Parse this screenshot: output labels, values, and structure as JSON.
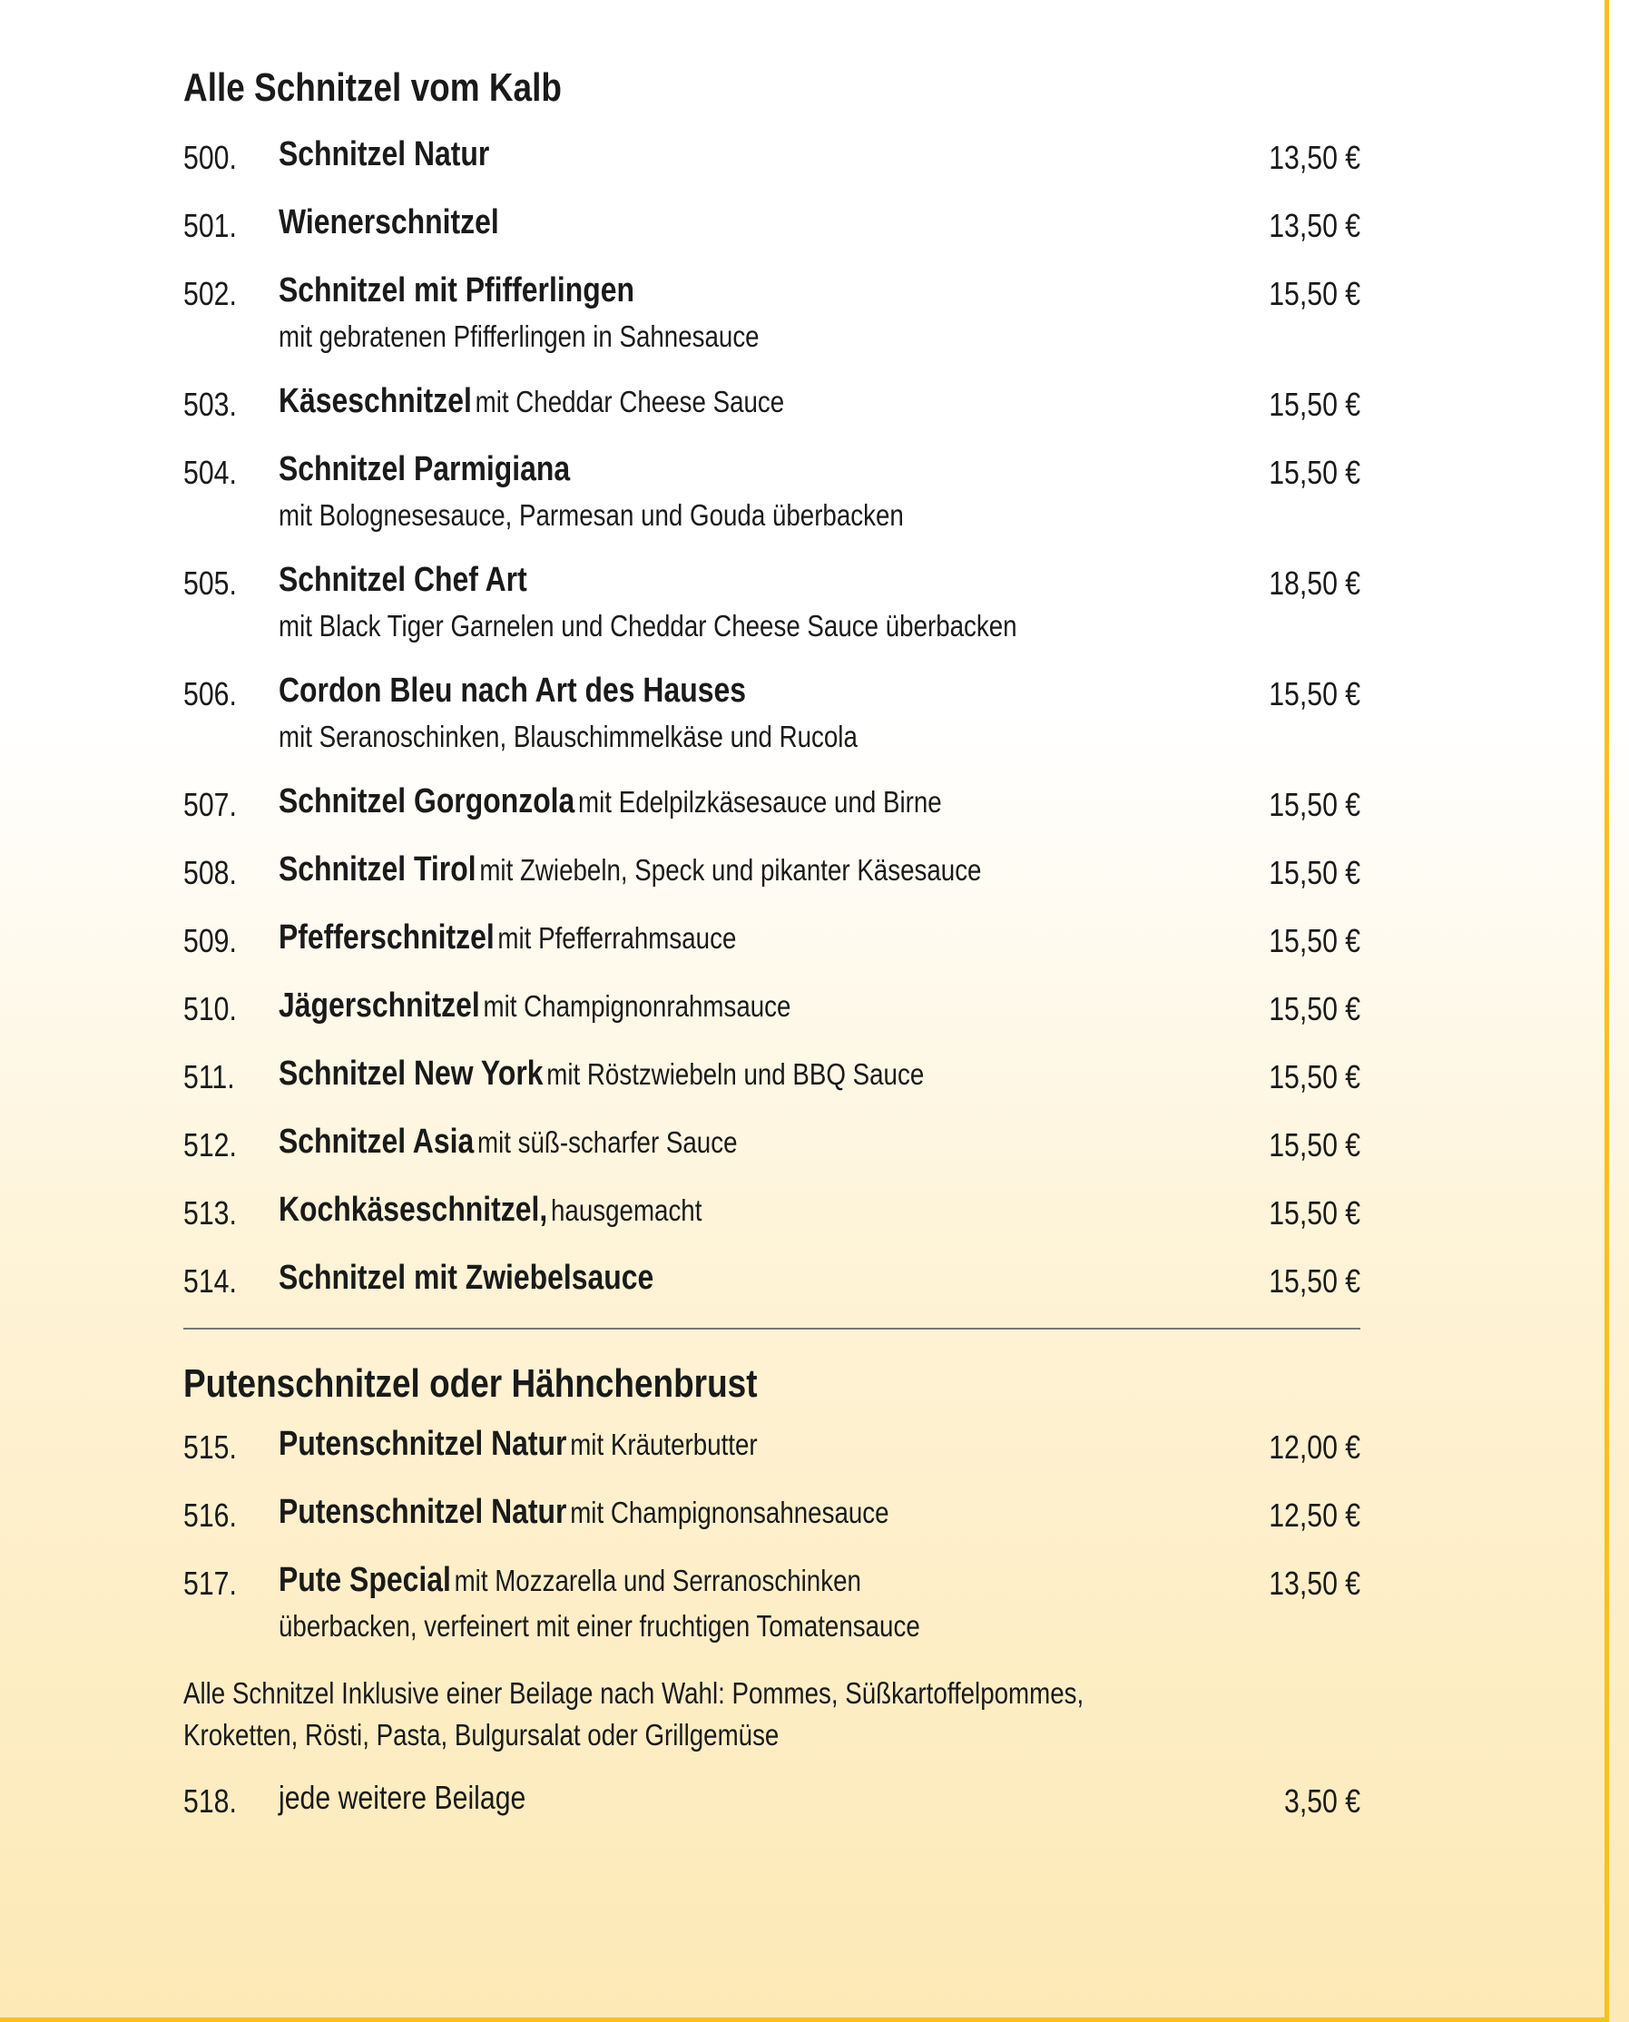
{
  "colors": {
    "frame": "#f6c21c",
    "background_bottom": "#fde9b6"
  },
  "sections": [
    {
      "title": "Alle Schnitzel vom Kalb",
      "items": [
        {
          "num": "500.",
          "name": "Schnitzel Natur",
          "desc": "",
          "sub": "",
          "price": "13,50 €"
        },
        {
          "num": "501.",
          "name": "Wienerschnitzel",
          "desc": "",
          "sub": "",
          "price": "13,50 €"
        },
        {
          "num": "502.",
          "name": "Schnitzel mit Pfifferlingen",
          "desc": "",
          "sub": "mit gebratenen Pfifferlingen in Sahnesauce",
          "price": "15,50 €"
        },
        {
          "num": "503.",
          "name": "Käseschnitzel",
          "desc": "mit Cheddar Cheese Sauce",
          "sub": "",
          "price": "15,50 €"
        },
        {
          "num": "504.",
          "name": "Schnitzel Parmigiana",
          "desc": "",
          "sub": "mit Bolognesesauce, Parmesan und Gouda überbacken",
          "price": "15,50 €"
        },
        {
          "num": "505.",
          "name": "Schnitzel Chef Art",
          "desc": "",
          "sub": "mit Black Tiger Garnelen und Cheddar Cheese Sauce überbacken",
          "price": "18,50 €"
        },
        {
          "num": "506.",
          "name": "Cordon Bleu nach Art des Hauses",
          "desc": "",
          "sub": "mit Seranoschinken, Blauschimmelkäse und Rucola",
          "price": "15,50 €"
        },
        {
          "num": "507.",
          "name": "Schnitzel Gorgonzola",
          "desc": "mit Edelpilzkäsesauce und Birne",
          "sub": "",
          "price": "15,50 €"
        },
        {
          "num": "508.",
          "name": "Schnitzel Tirol",
          "desc": "mit Zwiebeln, Speck und pikanter Käsesauce",
          "sub": "",
          "price": "15,50 €"
        },
        {
          "num": "509.",
          "name": "Pfefferschnitzel",
          "desc": "mit Pfefferrahmsauce",
          "sub": "",
          "price": "15,50 €"
        },
        {
          "num": "510.",
          "name": "Jägerschnitzel",
          "desc": "mit Champignonrahmsauce",
          "sub": "",
          "price": "15,50 €"
        },
        {
          "num": "511.",
          "name": "Schnitzel New York",
          "desc": "mit Röstzwiebeln und BBQ Sauce",
          "sub": "",
          "price": "15,50 €"
        },
        {
          "num": "512.",
          "name": "Schnitzel Asia",
          "desc": "mit süß-scharfer Sauce",
          "sub": "",
          "price": "15,50 €"
        },
        {
          "num": "513.",
          "name": "Kochkäseschnitzel,",
          "desc": "hausgemacht",
          "sub": "",
          "price": "15,50 €"
        },
        {
          "num": "514.",
          "name": "Schnitzel mit Zwiebelsauce",
          "desc": "",
          "sub": "",
          "price": "15,50 €"
        }
      ]
    },
    {
      "title": "Putenschnitzel oder Hähnchenbrust",
      "items": [
        {
          "num": "515.",
          "name": "Putenschnitzel Natur",
          "desc": "mit Kräuterbutter",
          "sub": "",
          "price": "12,00 €"
        },
        {
          "num": "516.",
          "name": "Putenschnitzel Natur",
          "desc": "mit Champignonsahnesauce",
          "sub": "",
          "price": "12,50 €"
        },
        {
          "num": "517.",
          "name": "Pute Special",
          "desc": "mit Mozzarella und Serranoschinken",
          "sub": "überbacken, verfeinert mit einer fruchtigen Tomatensauce",
          "price": "13,50 €"
        }
      ]
    }
  ],
  "note": {
    "line1": "Alle Schnitzel Inklusive einer Beilage nach Wahl: Pommes, Süßkartoffelpommes,",
    "line2": "Kroketten, Rösti, Pasta, Bulgursalat oder Grillgemüse"
  },
  "extra": {
    "num": "518.",
    "name": "jede weitere Beilage",
    "price": "3,50 €"
  }
}
